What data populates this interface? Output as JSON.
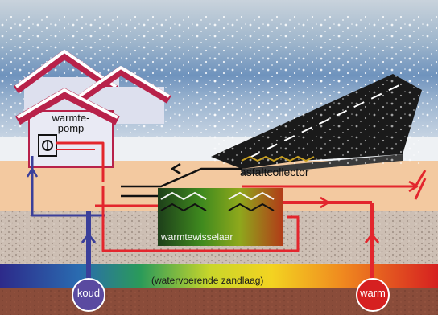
{
  "labels": {
    "heat_pump": "warmte-\npomp",
    "asphalt_collector": "asfaltcollector",
    "heat_exchanger": "warmtewisselaar",
    "aquifer": "(watervoerende zandlaag)",
    "cold": "koud",
    "warm": "warm"
  },
  "colors": {
    "sky": "#9fb6cc",
    "sand": "#f3c9a0",
    "gravel": "#cdbfb4",
    "clay": "#8a4c3a",
    "asphalt": "#1a1a1a",
    "roof": "#b8224a",
    "pipe_warm": "#e3262d",
    "pipe_cold": "#3b3f9a",
    "wall": "#dde0ee"
  }
}
